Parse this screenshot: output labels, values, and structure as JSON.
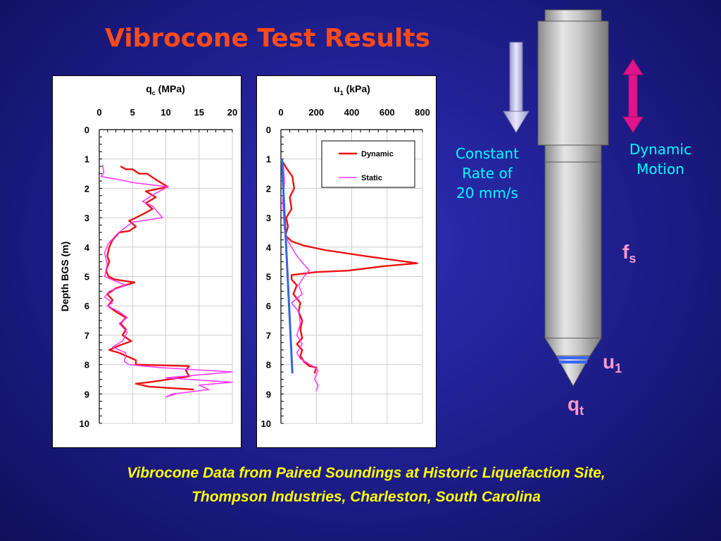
{
  "slide": {
    "title": "Vibrocone Test Results",
    "caption_line1": "Vibrocone Data from Paired Soundings at Historic Liquefaction Site,",
    "caption_line2": "Thompson Industries, Charleston, South Carolina"
  },
  "diagram": {
    "constant_rate_label": [
      "Constant",
      "Rate of",
      "20 mm/s"
    ],
    "dynamic_motion_label": [
      "Dynamic",
      "Motion"
    ],
    "fs_main": "f",
    "fs_sub": "s",
    "u1_main": "u",
    "u1_sub": "1",
    "qt_main": "q",
    "qt_sub": "t"
  },
  "colors": {
    "title": "#ff4a1a",
    "labels": "#00ffff",
    "symbols": "#ff99cc",
    "caption": "#ffff00",
    "dynamic": "#ee1111",
    "static": "#ff33ff",
    "trend": "#3366dd"
  },
  "chart_data": [
    {
      "type": "line",
      "title_main": "q",
      "title_sub": "c",
      "title_unit": " (MPa)",
      "ylabel": "Depth BGS (m)",
      "xlim": [
        0,
        20
      ],
      "ylim": [
        0,
        10
      ],
      "x_ticks": [
        "0",
        "5",
        "10",
        "15",
        "20"
      ],
      "y_ticks": [
        "0",
        "1",
        "2",
        "3",
        "4",
        "5",
        "6",
        "7",
        "8",
        "9",
        "10"
      ],
      "grid": true,
      "series": [
        {
          "name": "",
          "color": "#ee1111",
          "points": [
            [
              3.2,
              1.25
            ],
            [
              4,
              1.35
            ],
            [
              5,
              1.35
            ],
            [
              6,
              1.5
            ],
            [
              7.2,
              1.5
            ],
            [
              8.5,
              1.7
            ],
            [
              10.3,
              1.95
            ],
            [
              7,
              2.1
            ],
            [
              8.5,
              2.3
            ],
            [
              7,
              2.5
            ],
            [
              8,
              2.7
            ],
            [
              6.8,
              2.85
            ],
            [
              5.5,
              3.0
            ],
            [
              4.5,
              3.1
            ],
            [
              5.5,
              3.3
            ],
            [
              4.5,
              3.45
            ],
            [
              3,
              3.5
            ],
            [
              2,
              3.75
            ],
            [
              1.5,
              4.0
            ],
            [
              1.2,
              4.3
            ],
            [
              1.5,
              4.5
            ],
            [
              1,
              4.8
            ],
            [
              1.4,
              5.0
            ],
            [
              2.3,
              5.1
            ],
            [
              5.3,
              5.2
            ],
            [
              2.5,
              5.4
            ],
            [
              1.2,
              5.6
            ],
            [
              2,
              5.8
            ],
            [
              1.3,
              6.0
            ],
            [
              2.5,
              6.2
            ],
            [
              4,
              6.4
            ],
            [
              3.2,
              6.6
            ],
            [
              4,
              6.8
            ],
            [
              3.5,
              7.0
            ],
            [
              4.8,
              7.2
            ],
            [
              3,
              7.35
            ],
            [
              1.5,
              7.5
            ],
            [
              3,
              7.6
            ],
            [
              4,
              7.7
            ],
            [
              5.5,
              7.85
            ],
            [
              5.5,
              8.0
            ],
            [
              13.5,
              8.05
            ],
            [
              13,
              8.2
            ],
            [
              13.5,
              8.4
            ],
            [
              7.5,
              8.6
            ],
            [
              5.5,
              8.65
            ],
            [
              7.5,
              8.75
            ],
            [
              14.2,
              8.85
            ]
          ]
        },
        {
          "name": "",
          "color": "#ff33ff",
          "points": [
            [
              0.5,
              1.2
            ],
            [
              0.7,
              1.45
            ],
            [
              0.3,
              1.6
            ],
            [
              3,
              1.7
            ],
            [
              5,
              1.8
            ],
            [
              10.3,
              1.95
            ],
            [
              8.2,
              2.2
            ],
            [
              6.5,
              2.45
            ],
            [
              8,
              2.6
            ],
            [
              9.5,
              3.0
            ],
            [
              5,
              3.15
            ],
            [
              3.5,
              3.4
            ],
            [
              2.5,
              3.6
            ],
            [
              1.3,
              3.9
            ],
            [
              0.8,
              4.2
            ],
            [
              1.2,
              4.6
            ],
            [
              0.8,
              5.0
            ],
            [
              1.8,
              5.1
            ],
            [
              4,
              5.3
            ],
            [
              1.5,
              5.5
            ],
            [
              0.8,
              5.7
            ],
            [
              2,
              5.9
            ],
            [
              1.2,
              6.0
            ],
            [
              3,
              6.2
            ],
            [
              4.2,
              6.4
            ],
            [
              3,
              6.6
            ],
            [
              4.2,
              6.9
            ],
            [
              3.5,
              7.2
            ],
            [
              2,
              7.4
            ],
            [
              4,
              7.6
            ],
            [
              3.8,
              7.9
            ],
            [
              4.5,
              8.0
            ],
            [
              9,
              8.1
            ],
            [
              20,
              8.25
            ],
            [
              10,
              8.45
            ],
            [
              20,
              8.6
            ],
            [
              15,
              8.7
            ],
            [
              16.5,
              8.85
            ],
            [
              11,
              9.0
            ],
            [
              10,
              9.1
            ],
            [
              11.5,
              9.0
            ]
          ]
        }
      ]
    },
    {
      "type": "line",
      "title_main": "u",
      "title_sub": "1",
      "title_unit": " (kPa)",
      "xlim": [
        0,
        800
      ],
      "ylim": [
        0,
        10
      ],
      "x_ticks": [
        "0",
        "200",
        "400",
        "600",
        "800"
      ],
      "y_ticks": [
        "0",
        "1",
        "2",
        "3",
        "4",
        "5",
        "6",
        "7",
        "8",
        "9",
        "10"
      ],
      "grid": true,
      "legend": "top-right",
      "series": [
        {
          "name": "Dynamic",
          "color": "#ee1111",
          "points": [
            [
              5,
              1.05
            ],
            [
              30,
              1.3
            ],
            [
              65,
              1.6
            ],
            [
              75,
              2.0
            ],
            [
              50,
              2.3
            ],
            [
              60,
              2.7
            ],
            [
              30,
              3.0
            ],
            [
              40,
              3.3
            ],
            [
              25,
              3.6
            ],
            [
              60,
              3.8
            ],
            [
              130,
              3.95
            ],
            [
              250,
              4.1
            ],
            [
              470,
              4.3
            ],
            [
              770,
              4.55
            ],
            [
              580,
              4.65
            ],
            [
              380,
              4.8
            ],
            [
              200,
              4.85
            ],
            [
              60,
              4.95
            ],
            [
              60,
              5.1
            ],
            [
              90,
              5.3
            ],
            [
              70,
              5.6
            ],
            [
              110,
              5.9
            ],
            [
              100,
              6.2
            ],
            [
              120,
              6.5
            ],
            [
              110,
              6.8
            ],
            [
              120,
              7.1
            ],
            [
              90,
              7.3
            ],
            [
              120,
              7.5
            ],
            [
              110,
              7.7
            ],
            [
              130,
              7.9
            ],
            [
              160,
              8.05
            ],
            [
              200,
              8.1
            ],
            [
              190,
              8.3
            ]
          ]
        },
        {
          "name": "Static",
          "color": "#ff33ff",
          "points": [
            [
              5,
              1.0
            ],
            [
              15,
              1.3
            ],
            [
              20,
              1.8
            ],
            [
              10,
              2.4
            ],
            [
              15,
              3.0
            ],
            [
              20,
              3.4
            ],
            [
              40,
              3.8
            ],
            [
              90,
              4.3
            ],
            [
              160,
              4.8
            ],
            [
              130,
              5.0
            ],
            [
              100,
              5.3
            ],
            [
              120,
              5.6
            ],
            [
              60,
              5.9
            ],
            [
              100,
              6.2
            ],
            [
              110,
              6.6
            ],
            [
              90,
              7.0
            ],
            [
              120,
              7.3
            ],
            [
              90,
              7.6
            ],
            [
              110,
              7.8
            ],
            [
              180,
              8.05
            ],
            [
              210,
              8.2
            ],
            [
              190,
              8.5
            ],
            [
              210,
              8.7
            ],
            [
              200,
              8.9
            ]
          ]
        },
        {
          "name": "",
          "color": "#3366dd",
          "points": [
            [
              5,
              1.0
            ],
            [
              65,
              8.3
            ]
          ]
        }
      ]
    }
  ]
}
